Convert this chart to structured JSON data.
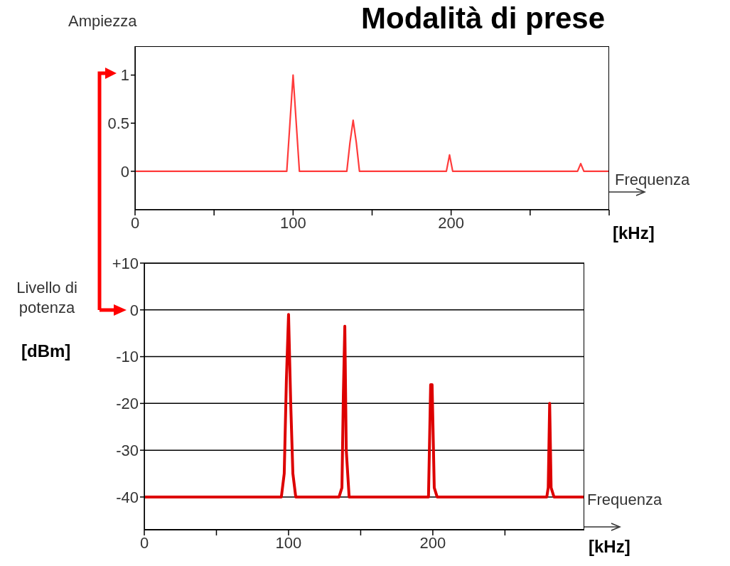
{
  "chart_data": [
    {
      "type": "line",
      "title": "Modalità di prese",
      "ylabel": "Ampiezza",
      "xlabel": "Frequenza",
      "annotations": [
        "[kHz]"
      ],
      "xlim": [
        0,
        300
      ],
      "xticks": [
        0,
        {
          "value": 50,
          "label": null
        },
        100,
        {
          "value": 150,
          "label": null
        },
        200,
        {
          "value": 250,
          "label": null
        },
        {
          "value": 300,
          "label": null
        }
      ],
      "ylim": [
        -0.4,
        1.3
      ],
      "yticks": [
        0,
        0.5,
        1
      ],
      "grid": false,
      "series": [
        {
          "color": "#ff3b3b",
          "x": [
            0,
            96,
            98,
            100,
            102,
            104,
            134,
            136,
            138,
            140,
            142,
            197,
            199,
            201,
            280,
            282,
            284,
            300
          ],
          "values": [
            0,
            0,
            0.5,
            1.0,
            0.5,
            0,
            0,
            0.3,
            0.53,
            0.3,
            0,
            0,
            0.17,
            0,
            0,
            0.08,
            0,
            0
          ]
        }
      ]
    },
    {
      "type": "line",
      "ylabel": "Livello di potenza",
      "xlabel": "Frequenza",
      "annotations": [
        "[kHz]",
        "[dBm]"
      ],
      "xlim": [
        0,
        305
      ],
      "xticks": [
        0,
        {
          "value": 50,
          "label": null
        },
        100,
        {
          "value": 150,
          "label": null
        },
        200,
        {
          "value": 250,
          "label": null
        }
      ],
      "ylim": [
        -47,
        10
      ],
      "yticks": [
        -40,
        -30,
        -20,
        -10,
        0,
        {
          "value": 10,
          "label": "+10"
        }
      ],
      "grid": "y",
      "series": [
        {
          "color": "#dd0000",
          "x": [
            0,
            95,
            97,
            98.5,
            100,
            101.5,
            103,
            105,
            135,
            137,
            138,
            139,
            140,
            142,
            197,
            198.5,
            199.5,
            201,
            203,
            279,
            280,
            281,
            282,
            284,
            305
          ],
          "values": [
            -40,
            -40,
            -35,
            -15,
            -1,
            -20,
            -35,
            -40,
            -40,
            -38,
            -18,
            -3.5,
            -30,
            -40,
            -40,
            -16,
            -16,
            -38,
            -40,
            -40,
            -38,
            -20,
            -38,
            -40,
            -40
          ]
        }
      ]
    }
  ]
}
